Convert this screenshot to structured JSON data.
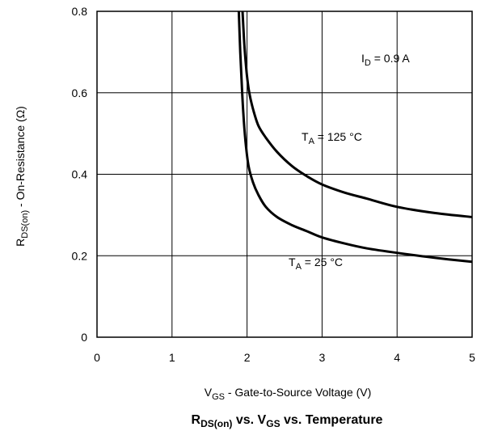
{
  "chart_data": {
    "type": "line",
    "title": {
      "pre": "R",
      "pre_sub": "DS(on)",
      "mid": " vs. V",
      "mid_sub": "GS",
      "post": " vs. Temperature"
    },
    "xlabel": {
      "main": "V",
      "sub": "GS",
      "rest": " - Gate-to-Source Voltage (V)"
    },
    "ylabel": {
      "main": "R",
      "sub": "DS(on)",
      "rest": " - On-Resistance (Ω)"
    },
    "xlim": [
      0,
      5
    ],
    "ylim": [
      0,
      0.8
    ],
    "xticks": [
      0,
      1,
      2,
      3,
      4,
      5
    ],
    "xtick_labels": [
      "0",
      "1",
      "2",
      "3",
      "4",
      "5"
    ],
    "yticks": [
      0,
      0.2,
      0.4,
      0.6,
      0.8
    ],
    "ytick_labels": [
      "0",
      "0.2",
      "0.4",
      "0.6",
      "0.8"
    ],
    "grid": true,
    "annotations": [
      {
        "main": "I",
        "sub": "D",
        "rest": " = 0.9 A"
      },
      {
        "main": "T",
        "sub": "A",
        "rest": " = 125 °C"
      },
      {
        "main": "T",
        "sub": "A",
        "rest": " = 25 °C"
      }
    ],
    "series": [
      {
        "label": "T_A = 125 °C",
        "x": [
          1.94,
          1.96,
          1.98,
          2.0,
          2.03,
          2.08,
          2.15,
          2.25,
          2.4,
          2.6,
          2.8,
          3.0,
          3.3,
          3.6,
          4.0,
          4.5,
          5.0
        ],
        "y": [
          0.8,
          0.73,
          0.68,
          0.64,
          0.6,
          0.56,
          0.52,
          0.49,
          0.455,
          0.42,
          0.395,
          0.375,
          0.355,
          0.34,
          0.32,
          0.305,
          0.295
        ]
      },
      {
        "label": "T_A = 25 °C",
        "x": [
          1.89,
          1.91,
          1.93,
          1.95,
          1.98,
          2.02,
          2.08,
          2.15,
          2.25,
          2.4,
          2.6,
          2.8,
          3.0,
          3.3,
          3.6,
          4.0,
          4.5,
          5.0
        ],
        "y": [
          0.8,
          0.7,
          0.62,
          0.55,
          0.48,
          0.42,
          0.38,
          0.35,
          0.32,
          0.295,
          0.275,
          0.26,
          0.245,
          0.23,
          0.218,
          0.207,
          0.195,
          0.185
        ]
      }
    ]
  }
}
